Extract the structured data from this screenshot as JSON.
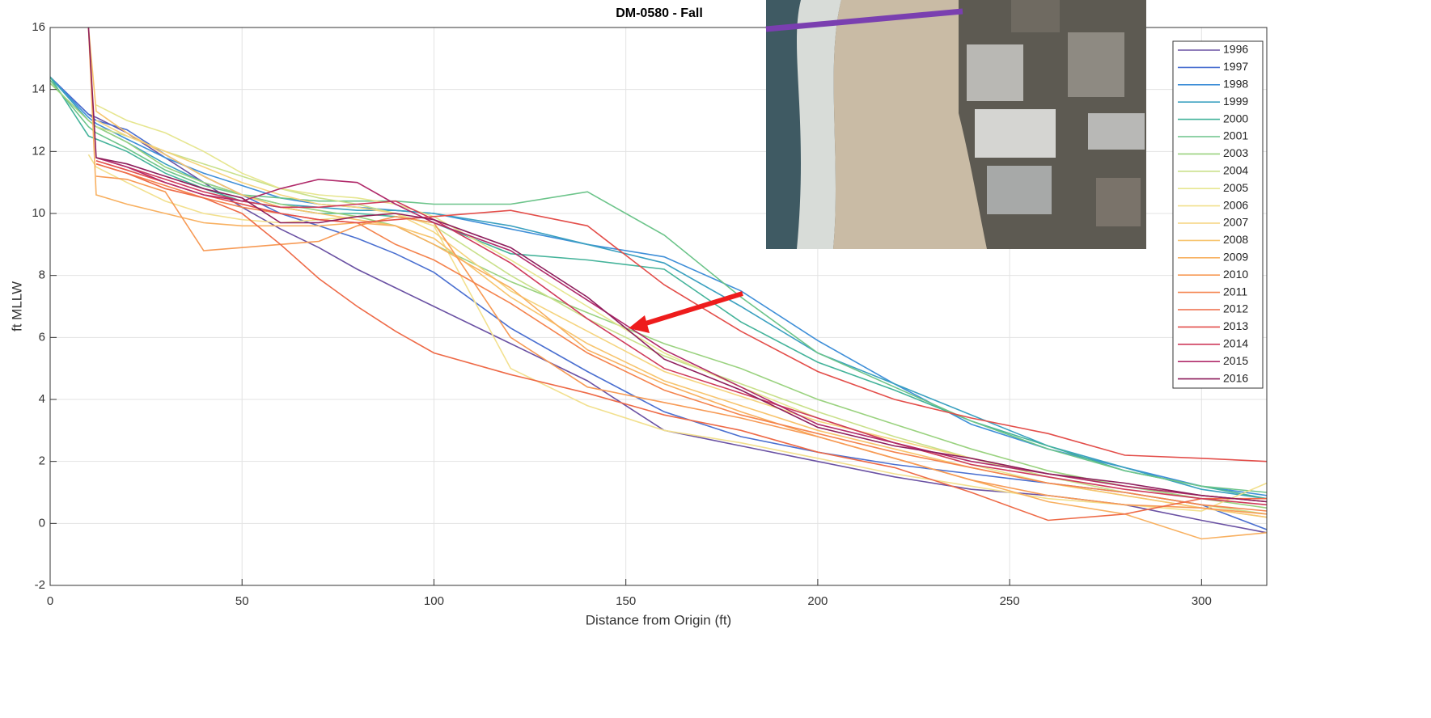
{
  "chart_data": {
    "type": "line",
    "title": "DM-0580 - Fall",
    "xlabel": "Distance from Origin (ft)",
    "ylabel": "ft MLLW",
    "x": [
      0,
      10,
      12,
      20,
      30,
      40,
      50,
      60,
      70,
      80,
      90,
      100,
      120,
      140,
      160,
      180,
      200,
      220,
      240,
      260,
      280,
      300,
      317
    ],
    "xlim": [
      0,
      317
    ],
    "ylim": [
      -2,
      16
    ],
    "xticks": [
      0,
      50,
      100,
      150,
      200,
      250,
      300
    ],
    "yticks": [
      -2,
      0,
      2,
      4,
      6,
      8,
      10,
      12,
      14,
      16
    ],
    "grid": true,
    "legend": "upper right",
    "series": [
      {
        "name": "1996",
        "color": "#6a51a3",
        "values": [
          14.4,
          13.2,
          13.1,
          12.6,
          11.8,
          11.0,
          10.2,
          9.5,
          8.9,
          8.2,
          7.6,
          7.0,
          5.8,
          4.6,
          3.0,
          2.5,
          2.0,
          1.5,
          1.1,
          0.9,
          0.6,
          0.1,
          -0.3
        ]
      },
      {
        "name": "1997",
        "color": "#4a6fd0",
        "values": [
          14.4,
          13.2,
          13.0,
          12.7,
          11.9,
          11.2,
          10.6,
          10.0,
          9.6,
          9.2,
          8.7,
          8.1,
          6.3,
          4.9,
          3.6,
          2.8,
          2.3,
          1.9,
          1.6,
          1.3,
          1.0,
          0.6,
          -0.2
        ]
      },
      {
        "name": "1998",
        "color": "#3f8fd8",
        "values": [
          14.4,
          13.1,
          12.9,
          12.4,
          11.8,
          11.3,
          10.9,
          10.5,
          10.3,
          10.2,
          10.1,
          10.0,
          9.5,
          9.0,
          8.6,
          7.5,
          5.9,
          4.5,
          3.2,
          2.4,
          1.8,
          1.2,
          0.9
        ]
      },
      {
        "name": "1999",
        "color": "#3aa0c0",
        "values": [
          14.4,
          13.0,
          12.8,
          12.3,
          11.6,
          11.0,
          10.6,
          10.3,
          10.2,
          10.1,
          10.1,
          10.0,
          9.6,
          9.0,
          8.4,
          7.0,
          5.5,
          4.5,
          3.5,
          2.5,
          1.8,
          1.1,
          0.8
        ]
      },
      {
        "name": "2000",
        "color": "#44b39a",
        "values": [
          14.4,
          12.5,
          12.4,
          12.0,
          11.3,
          10.8,
          10.4,
          10.2,
          10.0,
          10.0,
          9.9,
          9.7,
          8.7,
          8.5,
          8.2,
          6.5,
          5.2,
          4.3,
          3.3,
          2.5,
          1.7,
          1.2,
          0.8
        ]
      },
      {
        "name": "2001",
        "color": "#6cc48a",
        "values": [
          14.3,
          12.8,
          12.6,
          12.1,
          11.4,
          10.9,
          10.6,
          10.5,
          10.4,
          10.4,
          10.4,
          10.3,
          10.3,
          10.7,
          9.3,
          7.3,
          5.5,
          4.4,
          3.3,
          2.4,
          1.7,
          1.2,
          1.0
        ]
      },
      {
        "name": "2003",
        "color": "#9ad27f",
        "values": [
          14.2,
          13.0,
          12.8,
          12.3,
          11.5,
          11.0,
          10.6,
          10.3,
          10.1,
          9.9,
          9.6,
          9.0,
          7.8,
          6.8,
          5.8,
          5.0,
          4.0,
          3.2,
          2.4,
          1.7,
          1.2,
          0.8,
          0.5
        ]
      },
      {
        "name": "2004",
        "color": "#c9e08a",
        "values": [
          null,
          null,
          12.8,
          12.5,
          12.0,
          11.6,
          11.2,
          10.8,
          10.5,
          10.3,
          10.0,
          9.6,
          8.0,
          6.6,
          5.4,
          4.5,
          3.6,
          2.8,
          2.1,
          1.5,
          1.0,
          0.6,
          0.3
        ]
      },
      {
        "name": "2005",
        "color": "#e6e690",
        "values": [
          null,
          null,
          13.5,
          13.0,
          12.6,
          12.0,
          11.3,
          10.8,
          10.6,
          10.5,
          10.3,
          9.9,
          8.5,
          7.0,
          5.5,
          4.4,
          3.4,
          2.6,
          1.9,
          1.3,
          0.9,
          0.5,
          0.2
        ]
      },
      {
        "name": "2006",
        "color": "#f2e08e",
        "values": [
          null,
          11.9,
          11.5,
          11.0,
          10.4,
          10.0,
          9.8,
          9.7,
          9.8,
          9.9,
          10.0,
          9.6,
          5.0,
          3.8,
          3.0,
          2.6,
          2.1,
          1.6,
          1.2,
          0.8,
          0.6,
          0.4,
          1.3
        ]
      },
      {
        "name": "2007",
        "color": "#f5d47e",
        "values": [
          null,
          null,
          13.0,
          12.5,
          12.0,
          11.5,
          11.0,
          10.6,
          10.3,
          10.2,
          10.0,
          9.4,
          7.5,
          6.2,
          4.9,
          4.1,
          3.3,
          2.7,
          2.1,
          1.6,
          1.2,
          0.9,
          0.7
        ]
      },
      {
        "name": "2008",
        "color": "#f7c46d",
        "values": [
          null,
          16,
          13.3,
          12.6,
          11.9,
          11.2,
          10.6,
          10.2,
          10.0,
          9.8,
          9.6,
          9.2,
          7.3,
          5.8,
          4.6,
          3.8,
          3.0,
          2.4,
          1.8,
          1.3,
          0.9,
          0.5,
          0.2
        ]
      },
      {
        "name": "2009",
        "color": "#f8b060",
        "values": [
          null,
          16,
          10.6,
          10.3,
          10.0,
          9.7,
          9.6,
          9.6,
          9.6,
          9.7,
          9.6,
          9.0,
          7.6,
          5.6,
          4.5,
          3.6,
          2.8,
          2.1,
          1.4,
          0.7,
          0.3,
          -0.5,
          -0.3
        ]
      },
      {
        "name": "2010",
        "color": "#f79a55",
        "values": [
          null,
          null,
          11.2,
          11.1,
          10.7,
          8.8,
          8.9,
          9.0,
          9.1,
          9.6,
          9.9,
          9.7,
          6.0,
          4.4,
          3.9,
          3.4,
          2.8,
          2.1,
          1.4,
          0.9,
          0.6,
          0.5,
          0.3
        ]
      },
      {
        "name": "2011",
        "color": "#f4834d",
        "values": [
          null,
          null,
          11.6,
          11.3,
          10.9,
          10.5,
          10.2,
          10.0,
          9.8,
          9.7,
          9.0,
          8.5,
          7.1,
          5.5,
          4.3,
          3.5,
          2.9,
          2.3,
          1.8,
          1.3,
          1.0,
          0.6,
          0.4
        ]
      },
      {
        "name": "2012",
        "color": "#ee6a47",
        "values": [
          null,
          null,
          11.6,
          11.3,
          10.8,
          10.5,
          10.0,
          9.0,
          7.9,
          7.0,
          6.2,
          5.5,
          4.8,
          4.2,
          3.5,
          3.0,
          2.3,
          1.8,
          1.0,
          0.1,
          0.3,
          0.8,
          0.8
        ]
      },
      {
        "name": "2013",
        "color": "#e34e4a",
        "values": [
          null,
          null,
          11.7,
          11.4,
          11.0,
          10.6,
          10.3,
          10.0,
          9.8,
          9.7,
          9.8,
          9.9,
          10.1,
          9.6,
          7.7,
          6.2,
          4.9,
          4.0,
          3.4,
          2.9,
          2.2,
          2.1,
          2.0
        ]
      },
      {
        "name": "2014",
        "color": "#cf3a5b",
        "values": [
          null,
          null,
          11.8,
          11.5,
          11.1,
          10.7,
          10.4,
          10.2,
          10.2,
          10.3,
          10.4,
          9.8,
          8.4,
          6.6,
          5.0,
          4.2,
          3.4,
          2.6,
          1.9,
          1.5,
          1.1,
          0.8,
          0.6
        ]
      },
      {
        "name": "2015",
        "color": "#b02a6a",
        "values": [
          null,
          null,
          11.8,
          11.5,
          11.0,
          10.6,
          10.4,
          10.8,
          11.1,
          11.0,
          10.3,
          9.7,
          8.8,
          7.2,
          5.6,
          4.4,
          3.2,
          2.6,
          2.0,
          1.6,
          1.2,
          0.9,
          0.7
        ]
      },
      {
        "name": "2016",
        "color": "#8e1e5c",
        "values": [
          null,
          16,
          11.8,
          11.6,
          11.2,
          10.8,
          10.5,
          9.7,
          9.7,
          9.9,
          10.0,
          9.8,
          8.9,
          7.3,
          5.3,
          4.3,
          3.1,
          2.5,
          2.1,
          1.6,
          1.3,
          0.9,
          0.7
        ]
      }
    ]
  }
}
